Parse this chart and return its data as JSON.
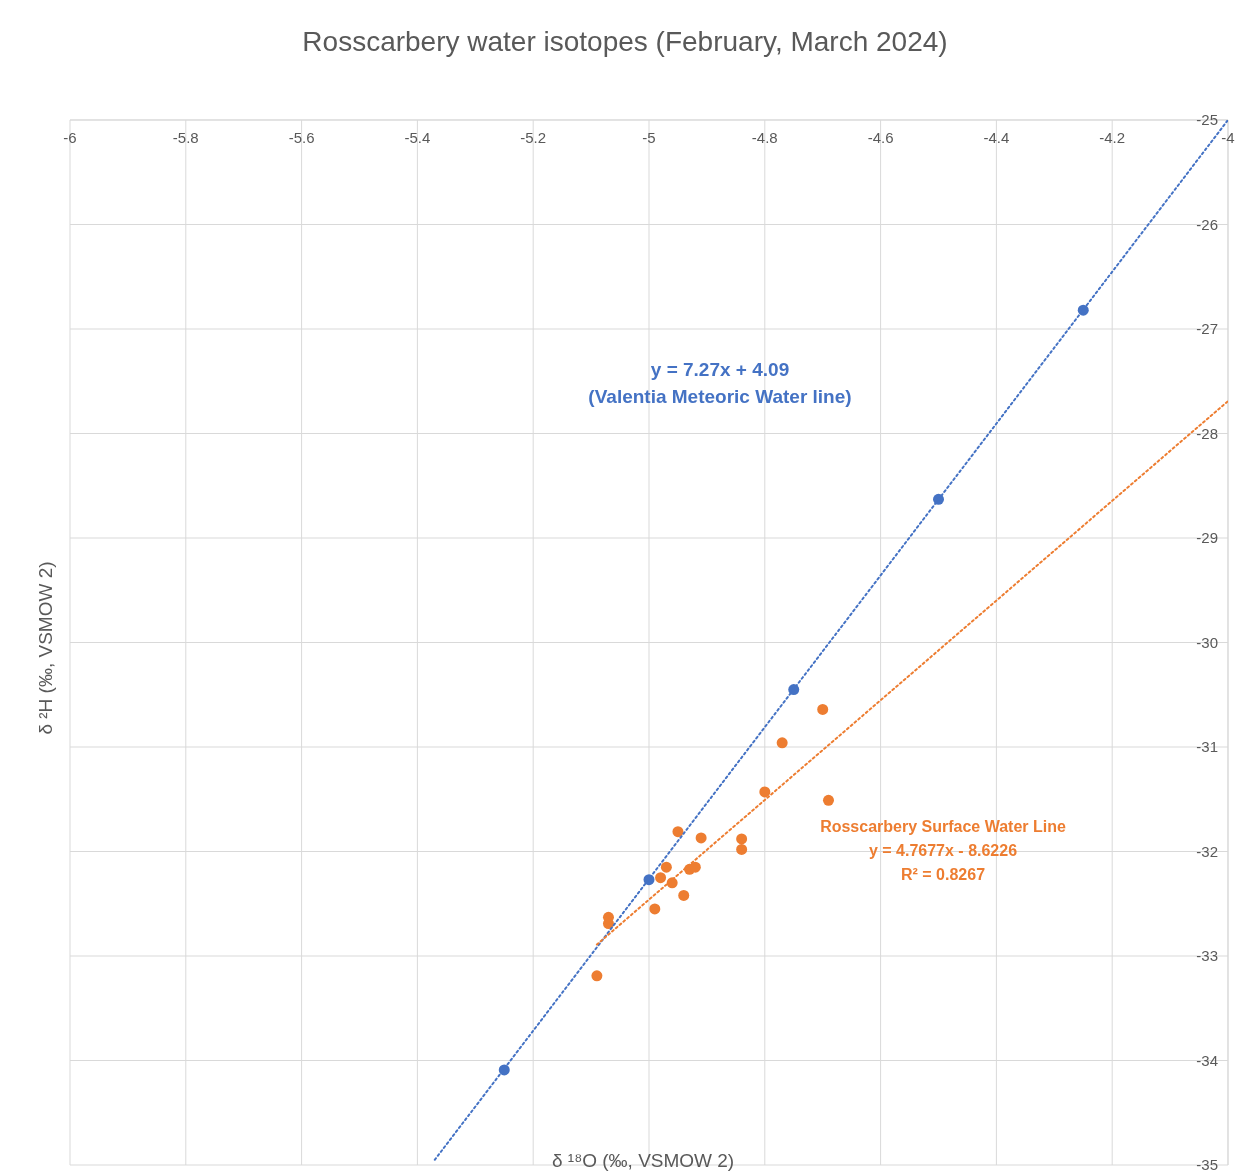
{
  "chart_data": {
    "type": "scatter",
    "title": "Rosscarbery water isotopes (February, March 2024)",
    "xlabel": "δ ¹⁸O (‰, VSMOW 2)",
    "ylabel": "δ ²H (‰, VSMOW 2)",
    "xlim": [
      -6,
      -4
    ],
    "xticks": [
      -6,
      -5.8,
      -5.6,
      -5.4,
      -5.2,
      -5,
      -4.8,
      -4.6,
      -4.4,
      -4.2,
      -4
    ],
    "ylim": [
      -35,
      -25
    ],
    "yticks": [
      -35,
      -34,
      -33,
      -32,
      -31,
      -30,
      -29,
      -28,
      -27,
      -26,
      -25
    ],
    "grid": true,
    "legend": false,
    "marker": "circle",
    "series": [
      {
        "color": "#4472c4",
        "x": [
          -5.25,
          -5.0,
          -4.75,
          -4.5,
          -4.25
        ],
        "values": [
          -34.09,
          -32.27,
          -30.45,
          -28.63,
          -26.82
        ]
      },
      {
        "color": "#ed7d31",
        "x": [
          -4.95,
          -4.91,
          -4.84,
          -4.84,
          -4.97,
          -4.93,
          -4.92,
          -4.98,
          -4.96,
          -4.94,
          -4.99,
          -5.07,
          -5.07,
          -5.09,
          -4.7,
          -4.77,
          -4.8,
          -4.69
        ],
        "values": [
          -31.81,
          -31.87,
          -31.88,
          -31.98,
          -32.15,
          -32.17,
          -32.15,
          -32.25,
          -32.3,
          -32.42,
          -32.55,
          -32.63,
          -32.69,
          -33.19,
          -30.64,
          -30.96,
          -31.43,
          -31.51
        ]
      },
      {
        "type": "line",
        "color": "#4472c4",
        "marker": "none",
        "line_style": "dotted",
        "x": [
          -5.37,
          -4.0
        ],
        "values": [
          -34.95,
          -25
        ]
      },
      {
        "type": "line",
        "color": "#ed7d31",
        "marker": "none",
        "line_style": "dotted",
        "x": [
          -5.09,
          -4.0
        ],
        "values": [
          -32.89,
          -27.69
        ]
      }
    ],
    "annotations": [
      "y = 7.27x + 4.09",
      "(Valentia Meteoric Water line)",
      "Rosscarbery Surface Water Line",
      "y = 4.7677x - 8.6226",
      "R² = 0.8267"
    ]
  }
}
